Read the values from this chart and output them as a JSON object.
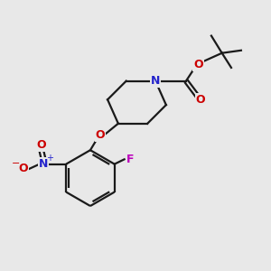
{
  "background_color": "#e8e8e8",
  "bond_color": "#1a1a1a",
  "N_color": "#2424cc",
  "O_color": "#cc0000",
  "F_color": "#bb00bb",
  "line_width": 1.6,
  "fig_size": [
    3.0,
    3.0
  ],
  "dpi": 100,
  "xlim": [
    0,
    10
  ],
  "ylim": [
    0,
    10
  ]
}
